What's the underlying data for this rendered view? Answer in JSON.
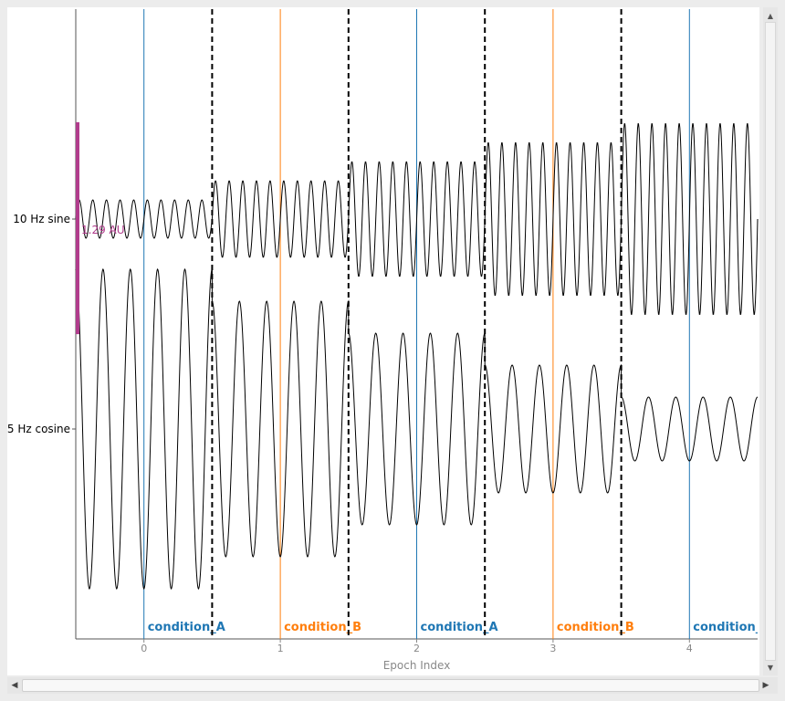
{
  "chart_data": {
    "type": "line",
    "xlabel": "Epoch Index",
    "xlim": [
      -0.5,
      4.5
    ],
    "x_ticks": [
      0,
      1,
      2,
      3,
      4
    ],
    "x_tick_labels": [
      "0",
      "1",
      "2",
      "3",
      "4"
    ],
    "series": [
      {
        "name": "10 Hz sine",
        "frequency_hz": 10,
        "cycles_per_epoch": 10,
        "epoch_amplitudes": [
          0.6,
          1.2,
          1.8,
          2.4,
          3.0
        ]
      },
      {
        "name": "5 Hz cosine",
        "frequency_hz": 5,
        "cycles_per_epoch": 5,
        "epoch_amplitudes": [
          5.0,
          4.0,
          3.0,
          2.0,
          1.0
        ]
      }
    ],
    "epoch_boundaries": [
      0.5,
      1.5,
      2.5,
      3.5
    ],
    "events": [
      {
        "x": 0,
        "label": "condition_A",
        "color": "#1f77b4"
      },
      {
        "x": 1,
        "label": "condition_B",
        "color": "#ff7f0e"
      },
      {
        "x": 2,
        "label": "condition_A",
        "color": "#1f77b4"
      },
      {
        "x": 3,
        "label": "condition_B",
        "color": "#ff7f0e"
      },
      {
        "x": 4,
        "label": "condition_A",
        "color": "#1f77b4"
      }
    ],
    "scale_bar": {
      "label": "1.29 AU",
      "value": 1.29,
      "color": "#b03c8c"
    },
    "colors": {
      "trace": "#000000",
      "event_a": "#1f77b4",
      "event_b": "#ff7f0e",
      "boundary": "#000000",
      "scale_bar": "#b03c8c"
    }
  }
}
